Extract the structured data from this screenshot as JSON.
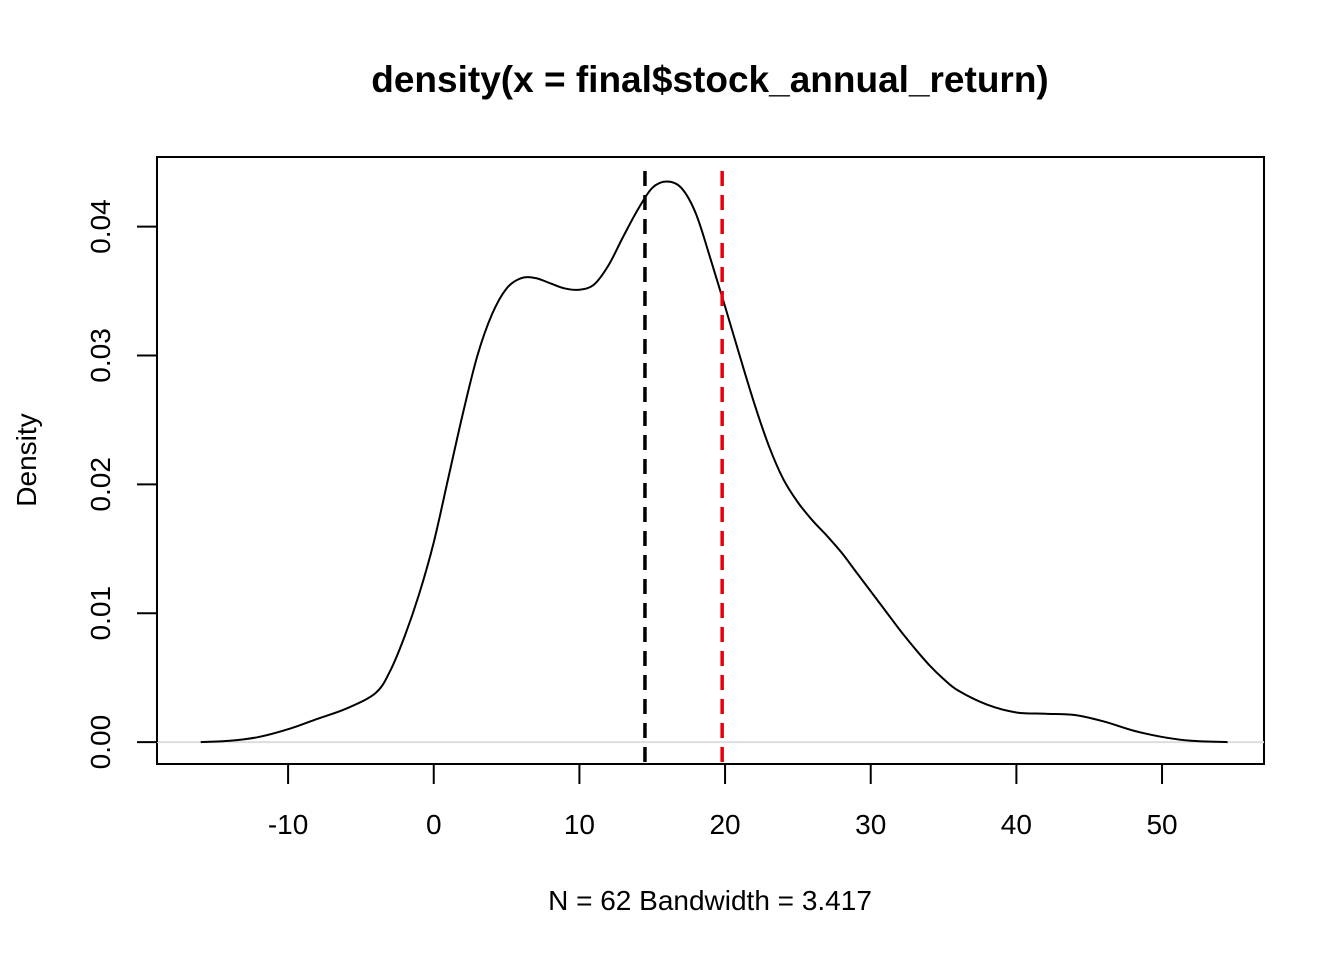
{
  "chart_data": {
    "type": "line",
    "title": "density(x = final$stock_annual_return)",
    "xlabel": "N = 62   Bandwidth = 3.417",
    "ylabel": "Density",
    "xlim": [
      -19.0,
      57.0
    ],
    "ylim": [
      -0.0017,
      0.0454
    ],
    "x_ticks": [
      -10,
      0,
      10,
      20,
      30,
      40,
      50
    ],
    "x_tick_labels": [
      "-10",
      "0",
      "10",
      "20",
      "30",
      "40",
      "50"
    ],
    "y_ticks": [
      0.0,
      0.01,
      0.02,
      0.03,
      0.04
    ],
    "y_tick_labels": [
      "0.00",
      "0.01",
      "0.02",
      "0.03",
      "0.04"
    ],
    "grid": false,
    "baseline": 0,
    "series": [
      {
        "color": "#000000",
        "x": [
          -16.0,
          -14.0,
          -12.0,
          -10.0,
          -8.0,
          -6.0,
          -4.0,
          -3.0,
          -2.0,
          -1.0,
          0.0,
          1.0,
          2.0,
          3.0,
          4.0,
          5.0,
          6.0,
          7.0,
          8.0,
          9.0,
          10.0,
          11.0,
          12.0,
          13.0,
          14.0,
          15.0,
          16.0,
          17.0,
          18.0,
          19.0,
          20.0,
          21.0,
          22.0,
          23.0,
          24.0,
          25.0,
          26.0,
          27.0,
          28.0,
          29.0,
          30.0,
          31.0,
          32.0,
          33.0,
          34.0,
          35.0,
          36.0,
          38.0,
          40.0,
          42.0,
          44.0,
          46.0,
          48.0,
          50.0,
          52.0,
          54.5
        ],
        "y": [
          0.0,
          0.0001,
          0.0004,
          0.001,
          0.0018,
          0.0026,
          0.0038,
          0.0055,
          0.0082,
          0.0115,
          0.0155,
          0.0205,
          0.0255,
          0.03,
          0.0332,
          0.0352,
          0.036,
          0.036,
          0.0356,
          0.0352,
          0.0351,
          0.0355,
          0.037,
          0.0392,
          0.0413,
          0.043,
          0.0435,
          0.043,
          0.041,
          0.0375,
          0.0338,
          0.03,
          0.0263,
          0.023,
          0.0204,
          0.0186,
          0.0172,
          0.016,
          0.0147,
          0.0132,
          0.0117,
          0.0102,
          0.0087,
          0.0073,
          0.006,
          0.0049,
          0.004,
          0.0029,
          0.0023,
          0.0022,
          0.0021,
          0.0016,
          0.0009,
          0.0004,
          0.0001,
          0.0
        ]
      }
    ],
    "vlines": [
      {
        "x": 14.5,
        "color": "#000000",
        "style": "dashed"
      },
      {
        "x": 19.8,
        "color": "#e8000d",
        "style": "dashed"
      }
    ],
    "colors": {
      "curve": "#000000",
      "vline_1": "#000000",
      "vline_2": "#e8000d",
      "baseline": "#dddddd"
    }
  }
}
